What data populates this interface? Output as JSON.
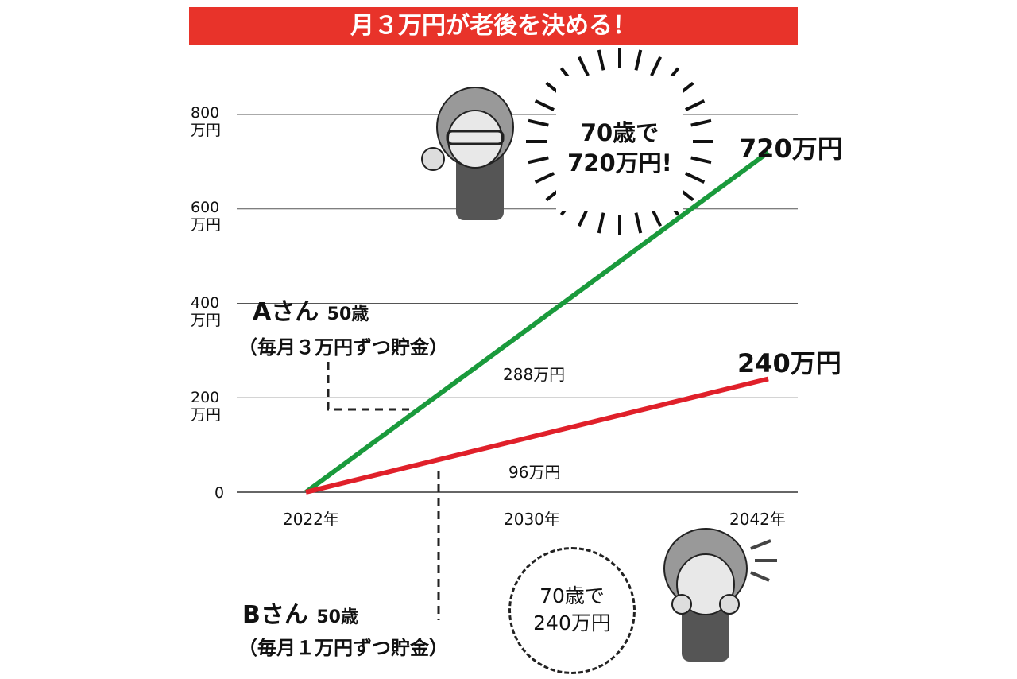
{
  "title": "月３万円が老後を決める！",
  "chart_data": {
    "type": "line",
    "title": "月３万円が老後を決める！",
    "x": [
      2022,
      2042
    ],
    "x_ticks": [
      "2022年",
      "2030年",
      "2042年"
    ],
    "y_ticks": [
      {
        "v": "800",
        "u": "万円"
      },
      {
        "v": "600",
        "u": "万円"
      },
      {
        "v": "400",
        "u": "万円"
      },
      {
        "v": "200",
        "u": "万円"
      },
      {
        "v": "0",
        "u": ""
      }
    ],
    "ylim": [
      0,
      800
    ],
    "grid": true,
    "series": [
      {
        "name": "Aさん",
        "values": [
          0,
          720
        ],
        "color": "#1a9a3c",
        "end_label": "720万円",
        "mid_label": "288万円"
      },
      {
        "name": "Bさん",
        "values": [
          0,
          240
        ],
        "color": "#e0202a",
        "end_label": "240万円",
        "mid_label": "96万円"
      }
    ]
  },
  "labels": {
    "a_name": "Aさん",
    "a_age": "50歳",
    "a_plan": "（毎月３万円ずつ貯金）",
    "b_name": "Bさん",
    "b_age": "50歳",
    "b_plan": "（毎月１万円ずつ貯金）",
    "burst_1": "70歳で",
    "burst_2": "720万円!",
    "circle_1": "70歳で",
    "circle_2": "240万円"
  },
  "colors": {
    "title_bg": "#e8332a",
    "green": "#1a9a3c",
    "red": "#e0202a"
  }
}
